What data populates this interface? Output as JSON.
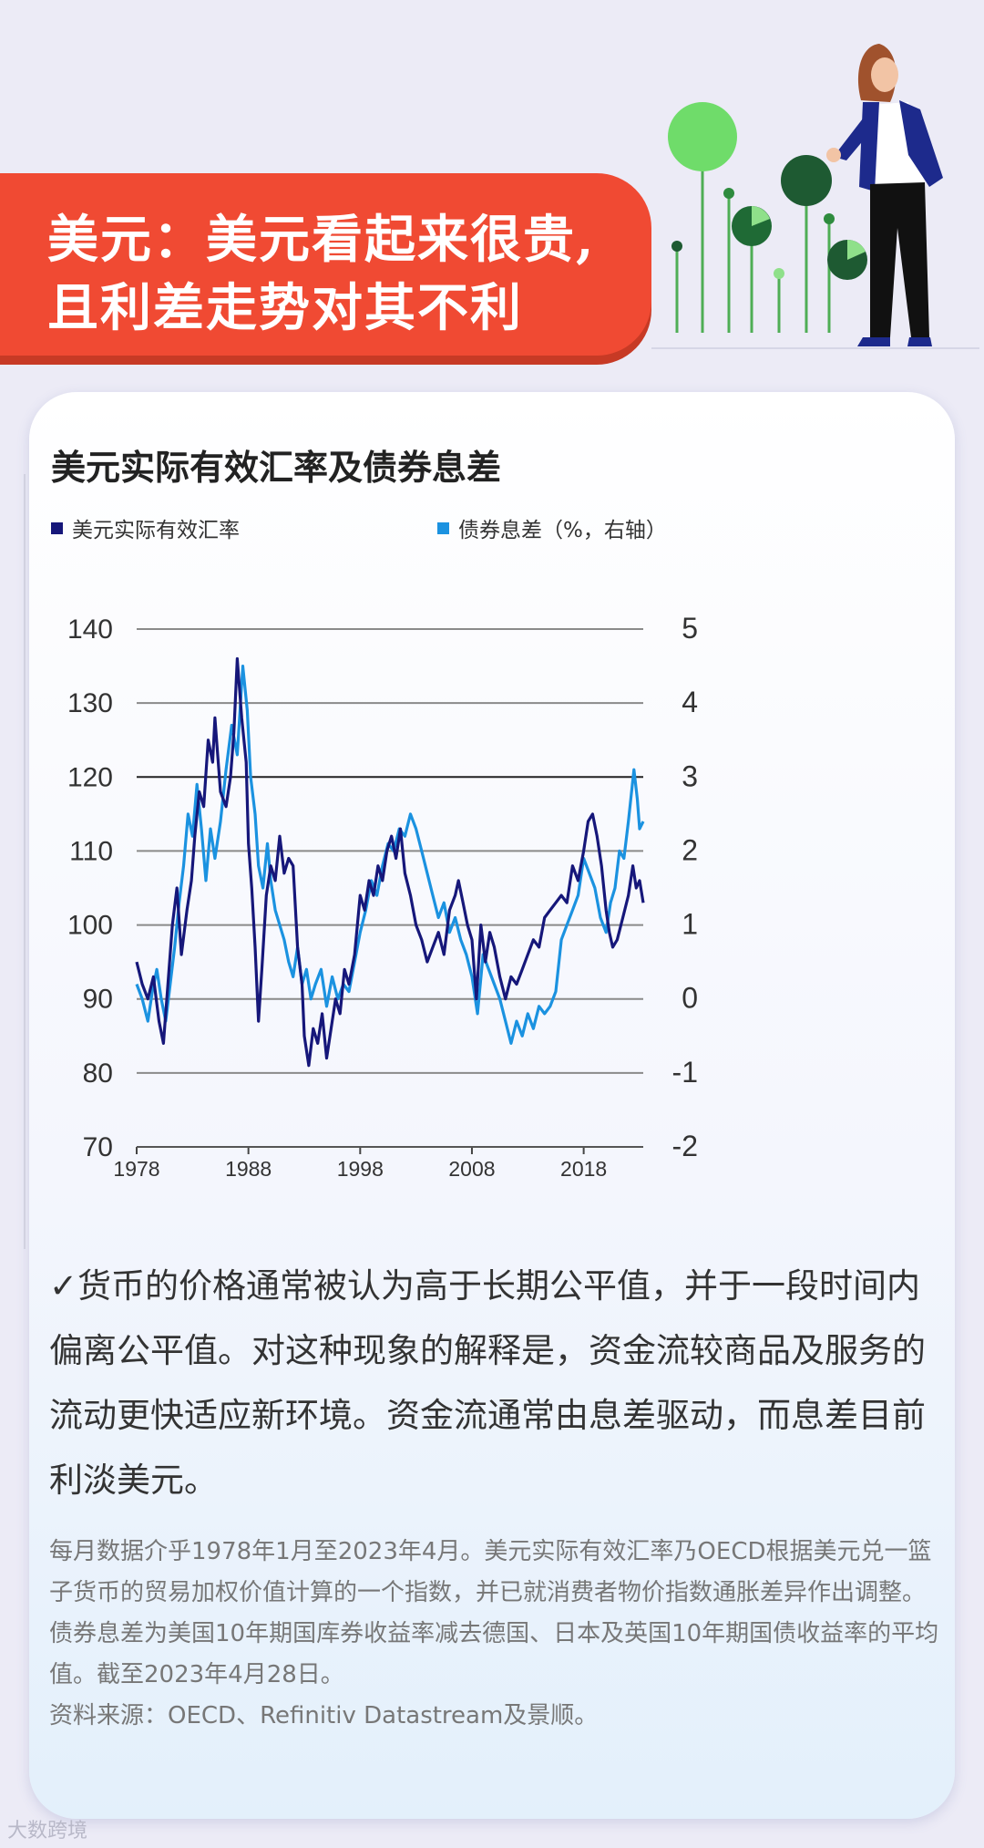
{
  "banner": {
    "line1": "美元：美元看起来很贵,",
    "line2": "且利差走势对其不利"
  },
  "chart_data": {
    "type": "line",
    "title": "美元实际有效汇率及债券息差",
    "colors": {
      "series1": "#16177a",
      "series2": "#1b92e0"
    },
    "y_left": {
      "range": [
        70,
        140
      ],
      "ticks": [
        "140",
        "130",
        "120",
        "110",
        "100",
        "90",
        "80",
        "70"
      ]
    },
    "y_right": {
      "range": [
        -2,
        5
      ],
      "ticks": [
        "5",
        "4",
        "3",
        "2",
        "1",
        "0",
        "-1",
        "-2"
      ]
    },
    "x": {
      "range": [
        1978,
        2023.33
      ],
      "ticks": [
        "1978",
        "1988",
        "1998",
        "2008",
        "2018"
      ]
    },
    "grid": true,
    "series": [
      {
        "name": "美元实际有效汇率",
        "axis": "left",
        "points": [
          [
            1978.0,
            95
          ],
          [
            1978.5,
            92
          ],
          [
            1979.0,
            90
          ],
          [
            1979.5,
            93
          ],
          [
            1980.0,
            87
          ],
          [
            1980.4,
            84
          ],
          [
            1980.8,
            92
          ],
          [
            1981.2,
            100
          ],
          [
            1981.6,
            105
          ],
          [
            1982.0,
            96
          ],
          [
            1982.5,
            102
          ],
          [
            1982.9,
            106
          ],
          [
            1983.2,
            112
          ],
          [
            1983.6,
            118
          ],
          [
            1984.0,
            116
          ],
          [
            1984.4,
            125
          ],
          [
            1984.8,
            122
          ],
          [
            1985.0,
            128
          ],
          [
            1985.2,
            124
          ],
          [
            1985.5,
            118
          ],
          [
            1986.0,
            116
          ],
          [
            1986.4,
            120
          ],
          [
            1986.7,
            126
          ],
          [
            1987.0,
            136
          ],
          [
            1987.4,
            128
          ],
          [
            1987.8,
            122
          ],
          [
            1988.0,
            111
          ],
          [
            1988.3,
            105
          ],
          [
            1988.6,
            97
          ],
          [
            1988.9,
            87
          ],
          [
            1989.2,
            94
          ],
          [
            1989.6,
            104
          ],
          [
            1990.0,
            108
          ],
          [
            1990.4,
            106
          ],
          [
            1990.8,
            112
          ],
          [
            1991.2,
            107
          ],
          [
            1991.6,
            109
          ],
          [
            1992.0,
            108
          ],
          [
            1992.4,
            97
          ],
          [
            1992.8,
            92
          ],
          [
            1993.0,
            85
          ],
          [
            1993.4,
            81
          ],
          [
            1993.8,
            86
          ],
          [
            1994.2,
            84
          ],
          [
            1994.6,
            88
          ],
          [
            1995.0,
            82
          ],
          [
            1995.4,
            86
          ],
          [
            1995.8,
            90
          ],
          [
            1996.2,
            88
          ],
          [
            1996.6,
            94
          ],
          [
            1997.0,
            92
          ],
          [
            1997.5,
            96
          ],
          [
            1998.0,
            104
          ],
          [
            1998.4,
            102
          ],
          [
            1998.8,
            106
          ],
          [
            1999.2,
            104
          ],
          [
            1999.6,
            108
          ],
          [
            2000.0,
            106
          ],
          [
            2000.4,
            110
          ],
          [
            2000.8,
            112
          ],
          [
            2001.2,
            109
          ],
          [
            2001.6,
            113
          ],
          [
            2002.0,
            107
          ],
          [
            2002.5,
            104
          ],
          [
            2003.0,
            100
          ],
          [
            2003.5,
            98
          ],
          [
            2004.0,
            95
          ],
          [
            2004.5,
            97
          ],
          [
            2005.0,
            99
          ],
          [
            2005.5,
            96
          ],
          [
            2006.0,
            102
          ],
          [
            2006.5,
            104
          ],
          [
            2006.8,
            106
          ],
          [
            2007.2,
            103
          ],
          [
            2007.6,
            100
          ],
          [
            2008.0,
            98
          ],
          [
            2008.4,
            90
          ],
          [
            2008.8,
            100
          ],
          [
            2009.2,
            95
          ],
          [
            2009.6,
            99
          ],
          [
            2010.0,
            97
          ],
          [
            2010.5,
            93
          ],
          [
            2011.0,
            90
          ],
          [
            2011.5,
            93
          ],
          [
            2012.0,
            92
          ],
          [
            2012.5,
            94
          ],
          [
            2013.0,
            96
          ],
          [
            2013.5,
            98
          ],
          [
            2014.0,
            97
          ],
          [
            2014.5,
            101
          ],
          [
            2015.0,
            102
          ],
          [
            2015.5,
            103
          ],
          [
            2016.0,
            104
          ],
          [
            2016.5,
            103
          ],
          [
            2017.0,
            108
          ],
          [
            2017.5,
            106
          ],
          [
            2018.0,
            110
          ],
          [
            2018.4,
            114
          ],
          [
            2018.8,
            115
          ],
          [
            2019.2,
            112
          ],
          [
            2019.6,
            108
          ],
          [
            2020.0,
            102
          ],
          [
            2020.3,
            99
          ],
          [
            2020.6,
            97
          ],
          [
            2021.0,
            98
          ],
          [
            2021.5,
            101
          ],
          [
            2022.0,
            104
          ],
          [
            2022.4,
            108
          ],
          [
            2022.7,
            105
          ],
          [
            2023.0,
            106
          ],
          [
            2023.33,
            103
          ]
        ]
      },
      {
        "name": "债券息差（%，右轴）",
        "axis": "right",
        "points": [
          [
            1978.0,
            0.2
          ],
          [
            1978.5,
            0.0
          ],
          [
            1979.0,
            -0.3
          ],
          [
            1979.4,
            0.1
          ],
          [
            1979.8,
            0.4
          ],
          [
            1980.2,
            0.0
          ],
          [
            1980.6,
            -0.3
          ],
          [
            1981.0,
            0.2
          ],
          [
            1981.4,
            0.7
          ],
          [
            1981.8,
            1.3
          ],
          [
            1982.2,
            1.8
          ],
          [
            1982.6,
            2.5
          ],
          [
            1983.0,
            2.2
          ],
          [
            1983.4,
            2.9
          ],
          [
            1983.8,
            2.3
          ],
          [
            1984.2,
            1.6
          ],
          [
            1984.6,
            2.3
          ],
          [
            1985.0,
            1.9
          ],
          [
            1985.5,
            2.4
          ],
          [
            1986.0,
            3.1
          ],
          [
            1986.5,
            3.7
          ],
          [
            1987.0,
            3.3
          ],
          [
            1987.5,
            4.5
          ],
          [
            1987.9,
            3.9
          ],
          [
            1988.2,
            3.0
          ],
          [
            1988.6,
            2.5
          ],
          [
            1988.9,
            1.8
          ],
          [
            1989.3,
            1.5
          ],
          [
            1989.7,
            2.1
          ],
          [
            1990.0,
            1.6
          ],
          [
            1990.4,
            1.2
          ],
          [
            1990.8,
            1.0
          ],
          [
            1991.2,
            0.8
          ],
          [
            1991.6,
            0.5
          ],
          [
            1992.0,
            0.3
          ],
          [
            1992.4,
            0.7
          ],
          [
            1992.8,
            0.2
          ],
          [
            1993.2,
            0.4
          ],
          [
            1993.6,
            0.0
          ],
          [
            1994.0,
            0.2
          ],
          [
            1994.5,
            0.4
          ],
          [
            1995.0,
            -0.1
          ],
          [
            1995.5,
            0.3
          ],
          [
            1996.0,
            0.0
          ],
          [
            1996.5,
            0.2
          ],
          [
            1997.0,
            0.1
          ],
          [
            1997.5,
            0.5
          ],
          [
            1998.0,
            0.9
          ],
          [
            1998.5,
            1.2
          ],
          [
            1999.0,
            1.6
          ],
          [
            1999.5,
            1.4
          ],
          [
            2000.0,
            1.8
          ],
          [
            2000.5,
            2.1
          ],
          [
            2001.0,
            2.0
          ],
          [
            2001.5,
            2.3
          ],
          [
            2002.0,
            2.2
          ],
          [
            2002.5,
            2.5
          ],
          [
            2003.0,
            2.3
          ],
          [
            2003.5,
            2.0
          ],
          [
            2004.0,
            1.7
          ],
          [
            2004.5,
            1.4
          ],
          [
            2005.0,
            1.1
          ],
          [
            2005.5,
            1.3
          ],
          [
            2006.0,
            0.9
          ],
          [
            2006.5,
            1.1
          ],
          [
            2007.0,
            0.8
          ],
          [
            2007.5,
            0.6
          ],
          [
            2008.0,
            0.3
          ],
          [
            2008.5,
            -0.2
          ],
          [
            2009.0,
            0.6
          ],
          [
            2009.5,
            0.4
          ],
          [
            2010.0,
            0.2
          ],
          [
            2010.5,
            0.0
          ],
          [
            2011.0,
            -0.3
          ],
          [
            2011.5,
            -0.6
          ],
          [
            2012.0,
            -0.3
          ],
          [
            2012.5,
            -0.5
          ],
          [
            2013.0,
            -0.2
          ],
          [
            2013.5,
            -0.4
          ],
          [
            2014.0,
            -0.1
          ],
          [
            2014.5,
            -0.2
          ],
          [
            2015.0,
            -0.1
          ],
          [
            2015.5,
            0.1
          ],
          [
            2016.0,
            0.8
          ],
          [
            2016.5,
            1.0
          ],
          [
            2017.0,
            1.2
          ],
          [
            2017.5,
            1.4
          ],
          [
            2018.0,
            1.9
          ],
          [
            2018.5,
            1.7
          ],
          [
            2019.0,
            1.5
          ],
          [
            2019.5,
            1.1
          ],
          [
            2020.0,
            0.9
          ],
          [
            2020.4,
            1.3
          ],
          [
            2020.8,
            1.5
          ],
          [
            2021.2,
            2.0
          ],
          [
            2021.6,
            1.9
          ],
          [
            2022.0,
            2.4
          ],
          [
            2022.5,
            3.1
          ],
          [
            2022.8,
            2.7
          ],
          [
            2023.0,
            2.3
          ],
          [
            2023.33,
            2.4
          ]
        ]
      }
    ]
  },
  "body_text": "✓货币的价格通常被认为高于长期公平值，并于一段时间内偏离公平值。对这种现象的解释是，资金流较商品及服务的流动更快适应新环境。资金流通常由息差驱动，而息差目前利淡美元。",
  "note": [
    "每月数据介乎1978年1月至2023年4月。美元实际有效汇率乃OECD根据美元兑一篮子货币的贸易加权价值计算的一个指数，并已就消费者物价指数通胀差异作出调整。债券息差为美国10年期国库券收益率减去德国、日本及英国10年期国债收益率的平均值。截至2023年4月28日。",
    "资料来源：OECD、Refinitiv Datastream及景顺。"
  ],
  "watermark": "大数跨境"
}
